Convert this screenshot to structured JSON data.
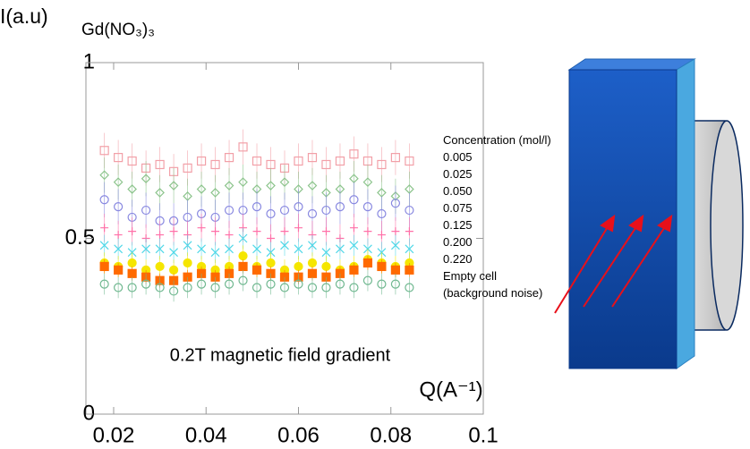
{
  "chart_data": {
    "type": "scatter",
    "y_label": "I(a.u)",
    "subtitle": "Gd(NO₃)₃",
    "x_label": "Q(A⁻¹)",
    "annotation": "0.2T magnetic field gradient",
    "legend_title": "Concentration (mol/l)",
    "xlim": [
      0.014,
      0.1
    ],
    "xticks": [
      0.02,
      0.04,
      0.06,
      0.08,
      0.1
    ],
    "ylim": [
      0,
      1
    ],
    "yticks": [
      0,
      0.5,
      1
    ],
    "x": [
      0.018,
      0.021,
      0.024,
      0.027,
      0.03,
      0.033,
      0.036,
      0.039,
      0.042,
      0.045,
      0.048,
      0.051,
      0.054,
      0.057,
      0.06,
      0.063,
      0.066,
      0.069,
      0.072,
      0.075,
      0.078,
      0.081,
      0.084
    ],
    "series": [
      {
        "name": "0.005",
        "color": "#f2a0a8",
        "marker": "square",
        "filled": false,
        "error": 0.05,
        "values": [
          0.75,
          0.73,
          0.72,
          0.7,
          0.71,
          0.69,
          0.7,
          0.72,
          0.71,
          0.73,
          0.76,
          0.72,
          0.71,
          0.7,
          0.72,
          0.73,
          0.71,
          0.72,
          0.74,
          0.72,
          0.71,
          0.73,
          0.72
        ]
      },
      {
        "name": "0.025",
        "color": "#8cc48c",
        "marker": "diamond",
        "filled": false,
        "error": 0.05,
        "values": [
          0.68,
          0.66,
          0.64,
          0.67,
          0.63,
          0.65,
          0.62,
          0.64,
          0.63,
          0.65,
          0.66,
          0.64,
          0.65,
          0.66,
          0.64,
          0.65,
          0.63,
          0.64,
          0.67,
          0.66,
          0.63,
          0.62,
          0.64
        ]
      },
      {
        "name": "0.050",
        "color": "#8888e0",
        "marker": "circle",
        "filled": false,
        "error": 0.05,
        "values": [
          0.61,
          0.59,
          0.56,
          0.58,
          0.55,
          0.55,
          0.56,
          0.57,
          0.56,
          0.58,
          0.58,
          0.59,
          0.57,
          0.58,
          0.59,
          0.57,
          0.58,
          0.59,
          0.61,
          0.59,
          0.57,
          0.6,
          0.58
        ]
      },
      {
        "name": "0.075",
        "color": "#ff70a8",
        "marker": "plus",
        "filled": false,
        "error": 0.04,
        "values": [
          0.53,
          0.51,
          0.52,
          0.5,
          0.51,
          0.52,
          0.51,
          0.53,
          0.52,
          0.51,
          0.53,
          0.52,
          0.5,
          0.52,
          0.53,
          0.51,
          0.52,
          0.5,
          0.53,
          0.52,
          0.51,
          0.52,
          0.52
        ]
      },
      {
        "name": "0.125",
        "color": "#50d8e8",
        "marker": "x",
        "filled": false,
        "error": 0.03,
        "values": [
          0.48,
          0.47,
          0.46,
          0.47,
          0.47,
          0.46,
          0.48,
          0.47,
          0.46,
          0.47,
          0.5,
          0.47,
          0.46,
          0.48,
          0.47,
          0.48,
          0.46,
          0.47,
          0.48,
          0.47,
          0.46,
          0.48,
          0.47
        ]
      },
      {
        "name": "0.200",
        "color": "#f5e600",
        "marker": "circle",
        "filled": true,
        "error": 0.03,
        "values": [
          0.43,
          0.42,
          0.43,
          0.41,
          0.42,
          0.41,
          0.43,
          0.42,
          0.41,
          0.42,
          0.45,
          0.42,
          0.43,
          0.41,
          0.42,
          0.43,
          0.42,
          0.41,
          0.42,
          0.44,
          0.43,
          0.42,
          0.43
        ]
      },
      {
        "name": "0.220",
        "color": "#ff6a00",
        "marker": "square",
        "filled": true,
        "error": 0.02,
        "values": [
          0.42,
          0.41,
          0.4,
          0.39,
          0.38,
          0.38,
          0.39,
          0.4,
          0.39,
          0.4,
          0.42,
          0.41,
          0.4,
          0.39,
          0.39,
          0.4,
          0.39,
          0.4,
          0.41,
          0.43,
          0.42,
          0.41,
          0.41
        ]
      },
      {
        "name": "Empty cell (background noise)",
        "color": "#70b890",
        "marker": "circle",
        "filled": false,
        "error": 0.03,
        "values": [
          0.37,
          0.36,
          0.36,
          0.37,
          0.36,
          0.35,
          0.36,
          0.37,
          0.36,
          0.37,
          0.38,
          0.36,
          0.37,
          0.36,
          0.37,
          0.36,
          0.36,
          0.37,
          0.36,
          0.38,
          0.37,
          0.37,
          0.36
        ]
      }
    ]
  }
}
